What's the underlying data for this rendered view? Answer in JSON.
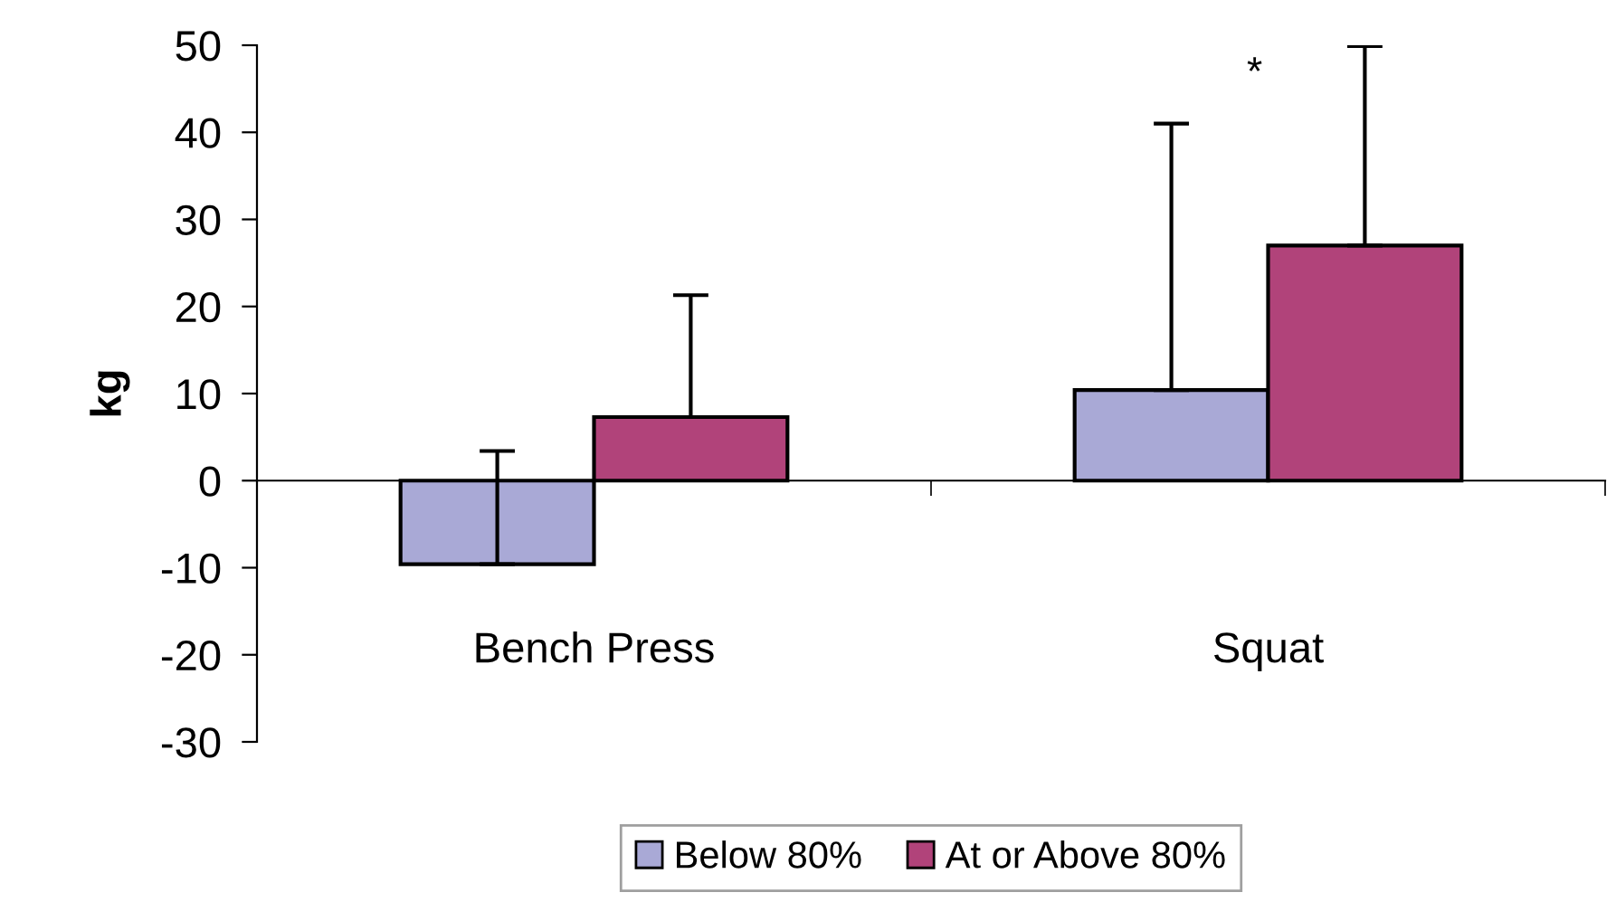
{
  "chart_data": {
    "type": "bar",
    "ylabel": "kg",
    "categories": [
      "Bench Press",
      "Squat"
    ],
    "series": [
      {
        "name": "Below 80%",
        "color": "#a9a9d6",
        "values": [
          -9.6,
          10.4
        ],
        "errors": [
          [
            -9.6,
            3.4
          ],
          [
            10.4,
            41.0
          ]
        ]
      },
      {
        "name": "At or Above 80%",
        "color": "#b1437a",
        "values": [
          7.3,
          27.0
        ],
        "errors": [
          [
            7.3,
            21.3
          ],
          [
            27.0,
            49.9
          ]
        ]
      }
    ],
    "ylim": [
      -30,
      50
    ],
    "yticks": [
      -30,
      -20,
      -10,
      0,
      10,
      20,
      30,
      40,
      50
    ],
    "annotations": [
      "*"
    ],
    "legend": "bottom"
  }
}
